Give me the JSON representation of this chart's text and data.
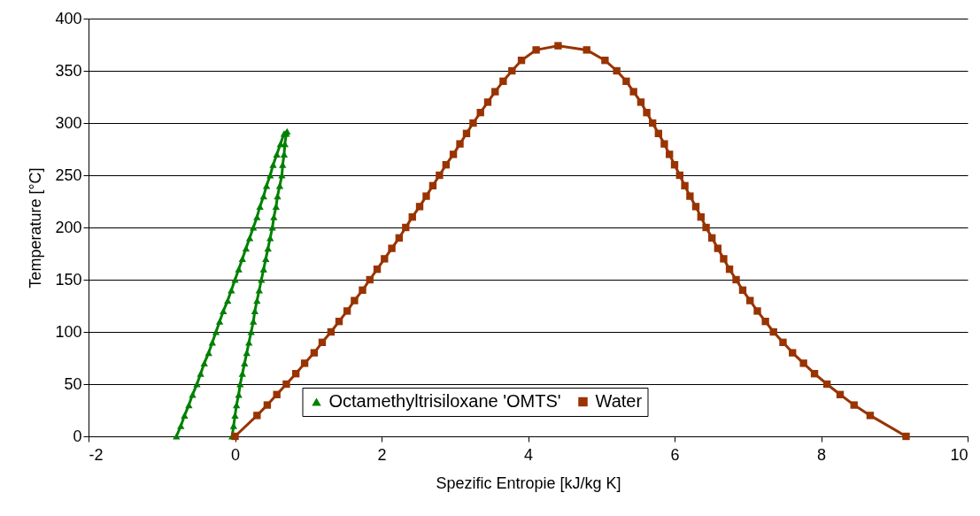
{
  "chart_data": {
    "type": "line",
    "xlabel": "Spezific Entropie [kJ/kg K]",
    "ylabel": "Temperature [°C]",
    "xlim": [
      -2,
      10
    ],
    "xticks": [
      -2,
      0,
      2,
      4,
      6,
      8,
      10
    ],
    "ylim": [
      0,
      400
    ],
    "yticks": [
      0,
      50,
      100,
      150,
      200,
      250,
      300,
      350,
      400
    ],
    "grid": "y",
    "legend": "bottom",
    "line_style": "solid",
    "series": [
      {
        "name": "Octamethyltrisiloxane 'OMTS'",
        "color": "#008000",
        "marker": "triangle",
        "x": [
          -0.8,
          -0.74,
          -0.69,
          -0.63,
          -0.58,
          -0.52,
          -0.47,
          -0.42,
          -0.36,
          -0.31,
          -0.26,
          -0.21,
          -0.16,
          -0.1,
          -0.05,
          0.0,
          0.05,
          0.1,
          0.15,
          0.2,
          0.25,
          0.3,
          0.34,
          0.39,
          0.43,
          0.48,
          0.52,
          0.57,
          0.62,
          0.67,
          0.71,
          0.7,
          0.68,
          0.67,
          0.65,
          0.64,
          0.61,
          0.58,
          0.56,
          0.53,
          0.51,
          0.48,
          0.45,
          0.42,
          0.39,
          0.36,
          0.33,
          0.3,
          0.27,
          0.25,
          0.22,
          0.19,
          0.16,
          0.13,
          0.1,
          0.07,
          0.05,
          0.02,
          0.0,
          -0.02,
          -0.04
        ],
        "values": [
          0,
          10,
          20,
          30,
          40,
          50,
          60,
          70,
          80,
          90,
          100,
          110,
          120,
          130,
          140,
          150,
          160,
          170,
          180,
          190,
          200,
          210,
          220,
          230,
          240,
          250,
          260,
          270,
          280,
          290,
          292,
          290,
          280,
          270,
          260,
          250,
          240,
          230,
          220,
          210,
          200,
          190,
          180,
          170,
          160,
          150,
          140,
          130,
          120,
          110,
          100,
          90,
          80,
          70,
          60,
          50,
          40,
          30,
          20,
          10,
          0
        ]
      },
      {
        "name": "Water",
        "color": "#993300",
        "marker": "square",
        "x": [
          0.0,
          0.3,
          0.44,
          0.57,
          0.7,
          0.83,
          0.95,
          1.08,
          1.19,
          1.31,
          1.42,
          1.53,
          1.63,
          1.74,
          1.84,
          1.94,
          2.04,
          2.14,
          2.24,
          2.33,
          2.42,
          2.52,
          2.61,
          2.7,
          2.79,
          2.88,
          2.98,
          3.07,
          3.16,
          3.25,
          3.35,
          3.45,
          3.55,
          3.66,
          3.78,
          3.91,
          4.11,
          4.41,
          4.8,
          5.05,
          5.21,
          5.34,
          5.44,
          5.54,
          5.62,
          5.7,
          5.78,
          5.86,
          5.93,
          6.0,
          6.07,
          6.14,
          6.21,
          6.29,
          6.36,
          6.43,
          6.51,
          6.59,
          6.67,
          6.75,
          6.84,
          6.93,
          7.03,
          7.13,
          7.24,
          7.35,
          7.48,
          7.61,
          7.76,
          7.91,
          8.08,
          8.26,
          8.45,
          8.67,
          9.16
        ],
        "values": [
          0,
          20,
          30,
          40,
          50,
          60,
          70,
          80,
          90,
          100,
          110,
          120,
          130,
          140,
          150,
          160,
          170,
          180,
          190,
          200,
          210,
          220,
          230,
          240,
          250,
          260,
          270,
          280,
          290,
          300,
          310,
          320,
          330,
          340,
          350,
          360,
          370,
          374,
          370,
          360,
          350,
          340,
          330,
          320,
          310,
          300,
          290,
          280,
          270,
          260,
          250,
          240,
          230,
          220,
          210,
          200,
          190,
          180,
          170,
          160,
          150,
          140,
          130,
          120,
          110,
          100,
          90,
          80,
          70,
          60,
          50,
          40,
          30,
          20,
          0
        ]
      }
    ]
  }
}
